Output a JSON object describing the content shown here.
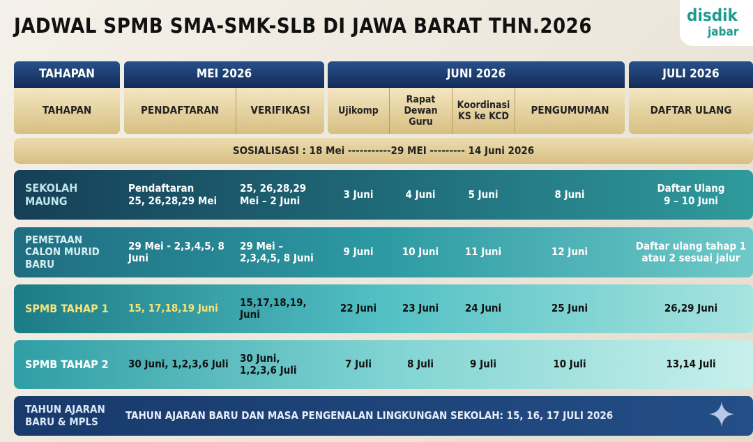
{
  "header": {
    "title": "JADWAL SPMB SMA-SMK-SLB DI JAWA BARAT THN.2026",
    "logo": [
      "disdik",
      "jabar"
    ]
  },
  "table": {
    "months": [
      "TAHAPAN",
      "MEI 2026",
      "JUNI 2026",
      "JULI 2026"
    ],
    "columns": [
      "TAHAPAN",
      "PENDAFTARAN",
      "VERIFIKASI",
      "Ujikomp",
      "Rapat\nDewan\nGuru",
      "Koordinasi\nKS ke KCD",
      "PENGUMUMAN",
      "DAFTAR ULANG"
    ],
    "sosialisasi": "SOSIALISASI : 18 Mei -----------29 MEI --------- 14 Juni 2026",
    "rows": [
      {
        "label": "SEKOLAH\nMAUNG",
        "cells": [
          "Pendaftaran\n25, 26,28,29 Mei",
          "25, 26,28,29\nMei – 2 Juni",
          "3 Juni",
          "4 Juni",
          "5 Juni",
          "8 Juni",
          "Daftar Ulang\n9 – 10 Juni"
        ]
      },
      {
        "label": "PEMETAAN\nCALON MURID\nBARU",
        "cells": [
          "29 Mei - 2,3,4,5, 8\nJuni",
          "29 Mei –\n2,3,4,5, 8 Juni",
          "9 Juni",
          "10 Juni",
          "11 Juni",
          "12 Juni",
          "Daftar ulang tahap 1\natau 2 sesuai jalur"
        ]
      },
      {
        "label": "SPMB TAHAP 1",
        "cells": [
          "15, 17,18,19 Juni",
          "15,17,18,19,\nJuni",
          "22 Juni",
          "23 Juni",
          "24 Juni",
          "25 Juni",
          "26,29 Juni"
        ]
      },
      {
        "label": "SPMB TAHAP 2",
        "cells": [
          "30 Juni, 1,2,3,6 Juli",
          "30 Juni,\n1,2,3,6 Juli",
          "7 Juli",
          "8 Juli",
          "9 Juli",
          "10 Juli",
          "13,14 Juli"
        ]
      }
    ],
    "footer": {
      "label": "TAHUN AJARAN\nBARU & MPLS",
      "text": "TAHUN AJARAN BARU DAN MASA PENGENALAN LINGKUNGAN SEKOLAH: 15, 16, 17 JULI 2026"
    }
  }
}
